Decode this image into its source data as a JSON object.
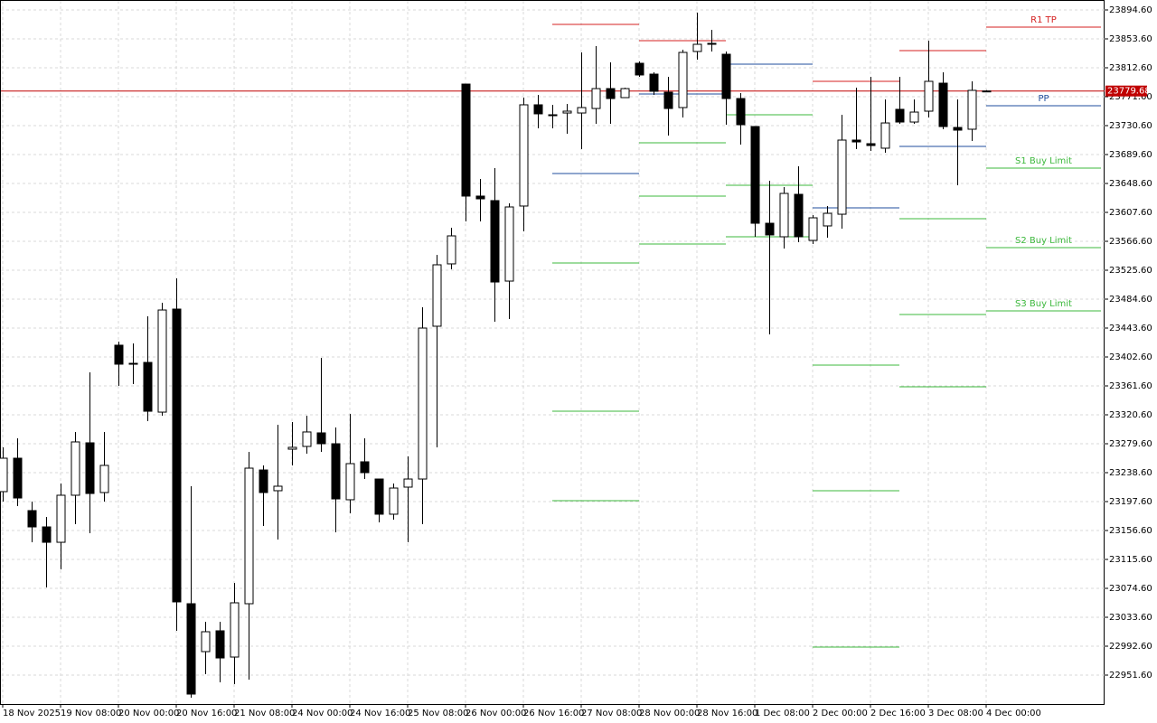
{
  "chart_data": {
    "type": "candlestick",
    "categories": [
      "18 Nov 2025",
      null,
      null,
      null,
      "19 Nov 08:00",
      null,
      null,
      null,
      "20 Nov 00:00",
      null,
      null,
      null,
      "20 Nov 16:00",
      null,
      null,
      null,
      "21 Nov 08:00",
      null,
      null,
      null,
      "24 Nov 00:00",
      null,
      null,
      null,
      "24 Nov 16:00",
      null,
      null,
      null,
      "25 Nov 08:00",
      null,
      null,
      null,
      "26 Nov 00:00",
      null,
      null,
      null,
      "26 Nov 16:00",
      null,
      null,
      null,
      "27 Nov 08:00",
      null,
      null,
      null,
      "28 Nov 00:00",
      null,
      null,
      null,
      "28 Nov 16:00",
      null,
      null,
      null,
      "1 Dec 08:00",
      null,
      null,
      null,
      "2 Dec 00:00",
      null,
      null,
      null,
      "2 Dec 16:00",
      null,
      null,
      null,
      "3 Dec 08:00",
      null,
      null,
      null,
      "4 Dec 00:00"
    ],
    "open": [
      23211.7,
      23259.1,
      23184.8,
      23161.7,
      23139.9,
      23206.6,
      23280.9,
      23210.4,
      23419.3,
      23393.6,
      23394.9,
      23324.4,
      23470.5,
      23052.8,
      22984.9,
      23014.4,
      22977.2,
      23052.8,
      23242.4,
      23213.0,
      23271.9,
      23275.8,
      23295.0,
      23279.6,
      23200.2,
      23254.0,
      23229.6,
      23179.7,
      23218.1,
      23229.6,
      23446.2,
      23534.6,
      23789.5,
      23630.7,
      23624.3,
      23510.2,
      23616.6,
      23760.1,
      23746.0,
      23748.5,
      23748.5,
      23754.9,
      23783.1,
      23770.3,
      23819.0,
      23803.6,
      23778.0,
      23756.2,
      23835.7,
      23847.2,
      23831.8,
      23769.0,
      23729.3,
      23592.2,
      23573.0,
      23633.2,
      23567.9,
      23588.4,
      23605.0,
      23710.1,
      23705.0,
      23698.6,
      23753.7,
      23735.7,
      23751.1,
      23790.8,
      23728.0,
      23725.5,
      23779.7
    ],
    "high": [
      23274.5,
      23287.3,
      23197.6,
      23175.8,
      23223.2,
      23296.3,
      23380.8,
      23296.3,
      23424.4,
      23421.8,
      23460.3,
      23479.5,
      23514.1,
      23219.4,
      23027.2,
      23027.2,
      23082.3,
      23268.1,
      23248.9,
      23306.5,
      23310.4,
      23319.3,
      23401.3,
      23302.7,
      23321.9,
      23287.3,
      23229.6,
      23223.2,
      23261.7,
      23473.1,
      23547.4,
      23585.8,
      23789.5,
      23655.0,
      23670.4,
      23620.4,
      23770.3,
      23774.2,
      23760.1,
      23761.4,
      23834.4,
      23843.4,
      23820.3,
      23784.4,
      23821.6,
      23806.2,
      23799.8,
      23838.2,
      23890.8,
      23866.4,
      23835.7,
      23776.7,
      23729.3,
      23652.4,
      23643.5,
      23672.9,
      23603.8,
      23616.6,
      23746.0,
      23784.4,
      23799.8,
      23767.8,
      23799.8,
      23767.8,
      23851.0,
      23806.2,
      23767.8,
      23793.4,
      23780.9
    ],
    "low": [
      23197.6,
      23191.2,
      23139.9,
      23075.9,
      23101.5,
      23165.6,
      23152.8,
      23197.6,
      23361.6,
      23364.2,
      23311.6,
      23319.3,
      23014.4,
      22919.6,
      22952.9,
      22941.4,
      22938.8,
      22945.2,
      23163.0,
      23143.8,
      23248.9,
      23265.5,
      23268.1,
      23154.0,
      23180.9,
      23229.6,
      23168.1,
      23172.0,
      23139.9,
      23165.6,
      23274.5,
      23526.9,
      23594.8,
      23594.8,
      23452.6,
      23456.4,
      23580.7,
      23726.8,
      23726.8,
      23719.1,
      23697.3,
      23733.2,
      23733.2,
      23770.3,
      23799.8,
      23774.2,
      23716.5,
      23742.1,
      23824.1,
      23835.7,
      23731.9,
      23703.7,
      23573.0,
      23434.6,
      23556.4,
      23565.3,
      23562.8,
      23571.7,
      23584.5,
      23697.3,
      23694.7,
      23692.2,
      23733.2,
      23733.2,
      23742.1,
      23725.5,
      23646.0,
      23708.8,
      23778.4
    ],
    "close": [
      23259.1,
      23202.7,
      23161.7,
      23139.9,
      23206.6,
      23282.2,
      23209.1,
      23248.9,
      23392.4,
      23392.4,
      23325.7,
      23469.2,
      23055.4,
      22924.7,
      23013.1,
      22975.9,
      23054.1,
      23245.0,
      23210.4,
      23219.4,
      23274.5,
      23296.3,
      23279.6,
      23201.4,
      23251.4,
      23238.6,
      23179.7,
      23216.8,
      23229.6,
      23443.6,
      23533.3,
      23574.3,
      23630.7,
      23626.8,
      23508.9,
      23615.3,
      23760.1,
      23747.3,
      23744.7,
      23751.1,
      23756.2,
      23783.1,
      23769.0,
      23783.1,
      23802.4,
      23779.3,
      23754.9,
      23834.4,
      23845.9,
      23847.2,
      23769.0,
      23731.9,
      23592.2,
      23575.6,
      23634.5,
      23573.0,
      23599.9,
      23606.3,
      23710.1,
      23707.5,
      23702.4,
      23734.4,
      23735.7,
      23749.8,
      23793.4,
      23729.3,
      23724.2,
      23780.6,
      23779.68
    ],
    "up_color": "#ffffff",
    "down_color": "#000000",
    "ylim": [
      22910.6,
      23908.7
    ],
    "yticks": [
      {
        "value": 23894.6,
        "label": "23894.60"
      },
      {
        "value": 23853.6,
        "label": "23853.60"
      },
      {
        "value": 23812.6,
        "label": "23812.60"
      },
      {
        "value": 23771.6,
        "label": "23771.60"
      },
      {
        "value": 23730.6,
        "label": "23730.60"
      },
      {
        "value": 23689.6,
        "label": "23689.60"
      },
      {
        "value": 23648.6,
        "label": "23648.60"
      },
      {
        "value": 23607.6,
        "label": "23607.60"
      },
      {
        "value": 23566.6,
        "label": "23566.60"
      },
      {
        "value": 23525.6,
        "label": "23525.60"
      },
      {
        "value": 23484.6,
        "label": "23484.60"
      },
      {
        "value": 23443.6,
        "label": "23443.60"
      },
      {
        "value": 23402.6,
        "label": "23402.60"
      },
      {
        "value": 23361.6,
        "label": "23361.60"
      },
      {
        "value": 23320.6,
        "label": "23320.60"
      },
      {
        "value": 23279.6,
        "label": "23279.60"
      },
      {
        "value": 23238.6,
        "label": "23238.60"
      },
      {
        "value": 23197.6,
        "label": "23197.60"
      },
      {
        "value": 23156.6,
        "label": "23156.60"
      },
      {
        "value": 23115.6,
        "label": "23115.60"
      },
      {
        "value": 23074.6,
        "label": "23074.60"
      },
      {
        "value": 23033.6,
        "label": "23033.60"
      },
      {
        "value": 22992.6,
        "label": "22992.60"
      },
      {
        "value": 22951.6,
        "label": "22951.60"
      }
    ],
    "grid": true,
    "current_price": {
      "value": 23779.68,
      "color": "#c00000"
    },
    "levels": {
      "x": [
        38,
        44,
        50,
        56,
        62,
        68,
        76
      ],
      "series": [
        {
          "name": "R1 TP",
          "color": "#d42020",
          "values": [
            23874.1,
            23851.0,
            null,
            23793.4,
            23836.9,
            23870.3
          ]
        },
        {
          "name": "PP",
          "color": "#1f4e9c",
          "values": [
            23662.7,
            23775.4,
            23817.7,
            23614.0,
            23701.1,
            23758.8
          ]
        },
        {
          "name": "S1 Buy Limit",
          "color": "#3cb83c",
          "values": [
            23535.9,
            23706.3,
            23746.0,
            23391.1,
            23598.6,
            23670.4
          ]
        },
        {
          "name": "S2 Buy Limit",
          "color": "#3cb83c",
          "values": [
            23325.7,
            23630.7,
            23646.0,
            23213.0,
            23462.8,
            23557.6
          ]
        },
        {
          "name": "S3 Buy Limit",
          "color": "#3cb83c",
          "values": [
            23198.9,
            23562.8,
            23573.0,
            22991.3,
            23360.3,
            23467.9
          ]
        }
      ]
    }
  }
}
